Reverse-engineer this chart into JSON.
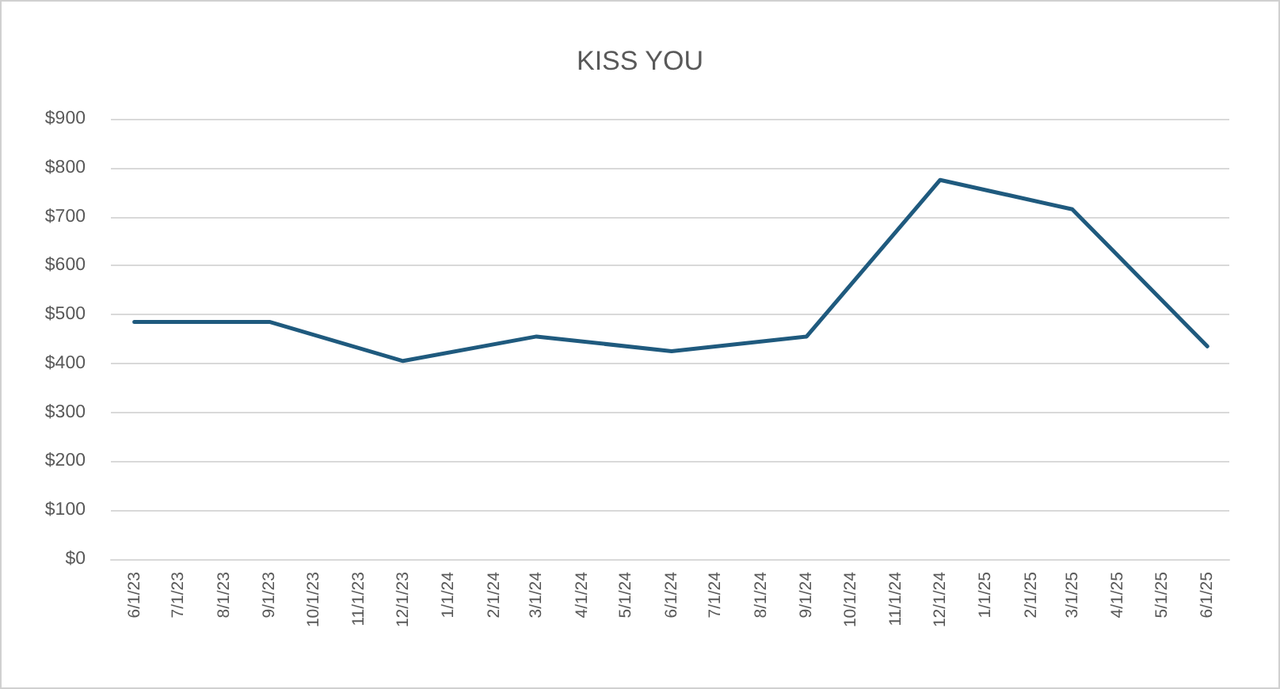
{
  "chart_data": {
    "type": "line",
    "title": "KISS YOU",
    "x": [
      "2023-06-01",
      "2023-09-01",
      "2023-12-01",
      "2024-03-01",
      "2024-06-01",
      "2024-09-01",
      "2024-12-01",
      "2025-03-01",
      "2025-06-01"
    ],
    "values": [
      485,
      485,
      405,
      455,
      425,
      455,
      775,
      715,
      435
    ],
    "color": "#1f5a7e",
    "xlim": [
      "2023-05-16",
      "2025-06-16"
    ],
    "xticks": [
      {
        "value": "2023-06-01",
        "label": "6/1/23"
      },
      {
        "value": "2023-07-01",
        "label": "7/1/23"
      },
      {
        "value": "2023-08-01",
        "label": "8/1/23"
      },
      {
        "value": "2023-09-01",
        "label": "9/1/23"
      },
      {
        "value": "2023-10-01",
        "label": "10/1/23"
      },
      {
        "value": "2023-11-01",
        "label": "11/1/23"
      },
      {
        "value": "2023-12-01",
        "label": "12/1/23"
      },
      {
        "value": "2024-01-01",
        "label": "1/1/24"
      },
      {
        "value": "2024-02-01",
        "label": "2/1/24"
      },
      {
        "value": "2024-03-01",
        "label": "3/1/24"
      },
      {
        "value": "2024-04-01",
        "label": "4/1/24"
      },
      {
        "value": "2024-05-01",
        "label": "5/1/24"
      },
      {
        "value": "2024-06-01",
        "label": "6/1/24"
      },
      {
        "value": "2024-07-01",
        "label": "7/1/24"
      },
      {
        "value": "2024-08-01",
        "label": "8/1/24"
      },
      {
        "value": "2024-09-01",
        "label": "9/1/24"
      },
      {
        "value": "2024-10-01",
        "label": "10/1/24"
      },
      {
        "value": "2024-11-01",
        "label": "11/1/24"
      },
      {
        "value": "2024-12-01",
        "label": "12/1/24"
      },
      {
        "value": "2025-01-01",
        "label": "1/1/25"
      },
      {
        "value": "2025-02-01",
        "label": "2/1/25"
      },
      {
        "value": "2025-03-01",
        "label": "3/1/25"
      },
      {
        "value": "2025-04-01",
        "label": "4/1/25"
      },
      {
        "value": "2025-05-01",
        "label": "5/1/25"
      },
      {
        "value": "2025-06-01",
        "label": "6/1/25"
      }
    ],
    "ylim": [
      0,
      900
    ],
    "yticks": [
      {
        "value": 0,
        "label": "$0"
      },
      {
        "value": 100,
        "label": "$100"
      },
      {
        "value": 200,
        "label": "$200"
      },
      {
        "value": 300,
        "label": "$300"
      },
      {
        "value": 400,
        "label": "$400"
      },
      {
        "value": 500,
        "label": "$500"
      },
      {
        "value": 600,
        "label": "$600"
      },
      {
        "value": 700,
        "label": "$700"
      },
      {
        "value": 800,
        "label": "$800"
      },
      {
        "value": 900,
        "label": "$900"
      }
    ],
    "grid": "y",
    "line_style": "solid"
  }
}
